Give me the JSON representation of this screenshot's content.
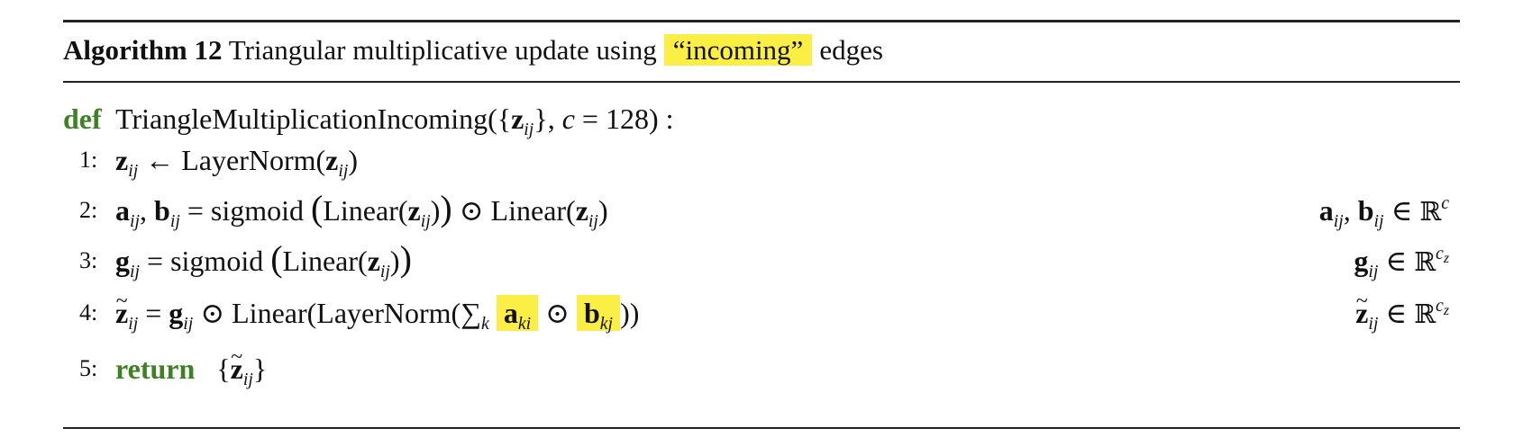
{
  "algorithm": {
    "label": "Algorithm 12",
    "title_before": "Triangular multiplicative update using",
    "title_highlight": "“incoming”",
    "title_after": "edges"
  },
  "def": {
    "keyword": "def",
    "function_name": "TriangleMultiplicationIncoming",
    "default_c": "128"
  },
  "steps": [
    {
      "num": "1:",
      "layernorm": "LayerNorm"
    },
    {
      "num": "2:",
      "sigmoid": "sigmoid",
      "linear": "Linear"
    },
    {
      "num": "3:",
      "sigmoid": "sigmoid",
      "linear": "Linear"
    },
    {
      "num": "4:",
      "linear": "Linear",
      "layernorm": "LayerNorm"
    },
    {
      "num": "5:",
      "keyword": "return"
    }
  ],
  "colors": {
    "highlight": "#fbee45",
    "keyword": "#3c8223",
    "rule": "#222222"
  }
}
